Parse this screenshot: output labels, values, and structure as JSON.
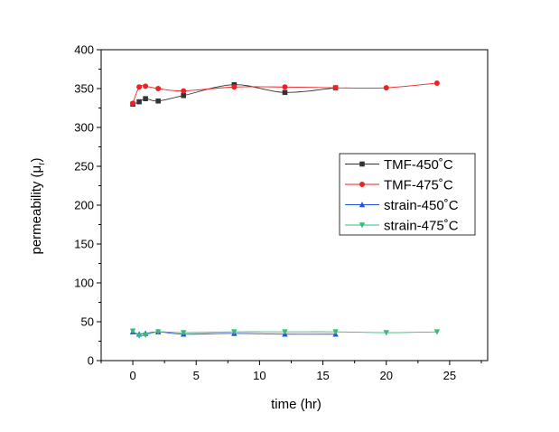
{
  "chart_data": {
    "type": "line",
    "title": "",
    "xlabel": "time (hr)",
    "ylabel": "permeability (μr)",
    "ylabel_main": "permeability (μ",
    "ylabel_sub": "r",
    "ylabel_close": ")",
    "xlim": [
      -2.5,
      28
    ],
    "ylim": [
      0,
      400
    ],
    "x_ticks": [
      0,
      5,
      10,
      15,
      20,
      25
    ],
    "x_tick_labels": [
      "0",
      "5",
      "10",
      "15",
      "20",
      "25"
    ],
    "y_ticks": [
      0,
      50,
      100,
      150,
      200,
      250,
      300,
      350,
      400
    ],
    "y_tick_labels": [
      "0",
      "50",
      "100",
      "150",
      "200",
      "250",
      "300",
      "350",
      "400"
    ],
    "grid": false,
    "legend_position": "right",
    "series": [
      {
        "name": "TMF-450˚C",
        "color": "#333333",
        "marker": "square",
        "points": [
          {
            "x": 0,
            "y": 330
          },
          {
            "x": 0.5,
            "y": 333
          },
          {
            "x": 1,
            "y": 337
          },
          {
            "x": 2,
            "y": 334
          },
          {
            "x": 4,
            "y": 341
          },
          {
            "x": 8,
            "y": 355
          },
          {
            "x": 12,
            "y": 345
          },
          {
            "x": 16,
            "y": 351
          }
        ]
      },
      {
        "name": "TMF-475˚C",
        "color": "#ee2222",
        "marker": "circle",
        "points": [
          {
            "x": 0,
            "y": 331
          },
          {
            "x": 0.5,
            "y": 352
          },
          {
            "x": 1,
            "y": 353
          },
          {
            "x": 2,
            "y": 350
          },
          {
            "x": 4,
            "y": 347
          },
          {
            "x": 8,
            "y": 352
          },
          {
            "x": 12,
            "y": 352
          },
          {
            "x": 16,
            "y": 351
          },
          {
            "x": 20,
            "y": 351
          },
          {
            "x": 24,
            "y": 357
          }
        ]
      },
      {
        "name": "strain-450˚C",
        "color": "#2255dd",
        "marker": "triangle-up",
        "points": [
          {
            "x": 0,
            "y": 37
          },
          {
            "x": 0.5,
            "y": 34
          },
          {
            "x": 1,
            "y": 35
          },
          {
            "x": 2,
            "y": 37
          },
          {
            "x": 4,
            "y": 34
          },
          {
            "x": 8,
            "y": 35
          },
          {
            "x": 12,
            "y": 34
          },
          {
            "x": 16,
            "y": 34
          }
        ]
      },
      {
        "name": "strain-475˚C",
        "color": "#33bb77",
        "marker": "triangle-down",
        "points": [
          {
            "x": 0,
            "y": 38
          },
          {
            "x": 0.5,
            "y": 32
          },
          {
            "x": 1,
            "y": 33
          },
          {
            "x": 2,
            "y": 37
          },
          {
            "x": 4,
            "y": 36
          },
          {
            "x": 8,
            "y": 37
          },
          {
            "x": 12,
            "y": 37
          },
          {
            "x": 16,
            "y": 37
          },
          {
            "x": 20,
            "y": 36
          },
          {
            "x": 24,
            "y": 37
          }
        ]
      }
    ]
  }
}
